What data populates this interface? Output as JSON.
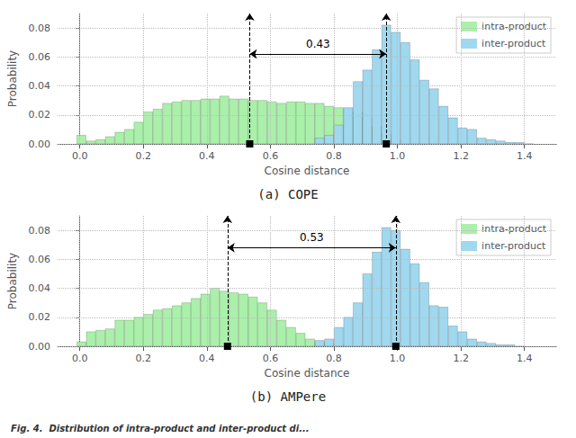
{
  "chart_data": [
    {
      "type": "histogram",
      "title": "(a) COPE",
      "xlabel": "Cosine distance",
      "ylabel": "Probability",
      "series": [
        {
          "name": "intra-product",
          "color": "#aaf0aa",
          "x": [
            0.005,
            0.035,
            0.065,
            0.095,
            0.125,
            0.155,
            0.185,
            0.215,
            0.245,
            0.275,
            0.305,
            0.335,
            0.365,
            0.395,
            0.425,
            0.455,
            0.485,
            0.515,
            0.545,
            0.575,
            0.605,
            0.635,
            0.665,
            0.695,
            0.725,
            0.755,
            0.785,
            0.815,
            0.845,
            0.875,
            0.905,
            0.935,
            0.965,
            0.995
          ],
          "values": [
            0.006,
            0.002,
            0.003,
            0.005,
            0.008,
            0.01,
            0.015,
            0.022,
            0.024,
            0.028,
            0.029,
            0.03,
            0.03,
            0.031,
            0.031,
            0.033,
            0.031,
            0.031,
            0.03,
            0.03,
            0.029,
            0.028,
            0.029,
            0.029,
            0.028,
            0.028,
            0.026,
            0.025,
            0.024,
            0.022,
            0.018,
            0.012,
            0.007,
            0.003
          ]
        },
        {
          "name": "inter-product",
          "color": "#a0d8ef",
          "x": [
            0.755,
            0.785,
            0.815,
            0.845,
            0.875,
            0.905,
            0.935,
            0.965,
            0.995,
            1.025,
            1.055,
            1.085,
            1.115,
            1.145,
            1.175,
            1.205,
            1.235,
            1.265,
            1.295,
            1.325,
            1.355,
            1.385,
            1.415
          ],
          "values": [
            0.004,
            0.006,
            0.013,
            0.025,
            0.043,
            0.051,
            0.065,
            0.082,
            0.077,
            0.07,
            0.058,
            0.044,
            0.038,
            0.026,
            0.018,
            0.011,
            0.01,
            0.004,
            0.003,
            0.002,
            0.001,
            0.001,
            0.0
          ]
        }
      ],
      "xlim": [
        -0.07,
        1.5
      ],
      "xticks": [
        {
          "value": 0,
          "label": "0.0"
        },
        0.2,
        0.4,
        0.6,
        0.8,
        {
          "value": 1,
          "label": "1.0"
        },
        1.2,
        1.4
      ],
      "ylim": [
        0.0,
        0.09
      ],
      "yticks": [
        {
          "value": 0,
          "label": "0.00"
        },
        0.02,
        0.04,
        0.06,
        0.08
      ],
      "grid": true,
      "legend": "upper right",
      "vlines": [
        0.535,
        0.965
      ],
      "annotations": [
        {
          "text": "0.43",
          "x": [
            0.535,
            0.965
          ],
          "y": 0.062
        }
      ]
    },
    {
      "type": "histogram",
      "title": "(b) AMPere",
      "xlabel": "Cosine distance",
      "ylabel": "Probability",
      "series": [
        {
          "name": "intra-product",
          "color": "#aaf0aa",
          "x": [
            0.005,
            0.035,
            0.065,
            0.095,
            0.125,
            0.155,
            0.185,
            0.215,
            0.245,
            0.275,
            0.305,
            0.335,
            0.365,
            0.395,
            0.425,
            0.455,
            0.485,
            0.515,
            0.545,
            0.575,
            0.605,
            0.635,
            0.665,
            0.695,
            0.725,
            0.755,
            0.785,
            0.815
          ],
          "values": [
            0.003,
            0.01,
            0.011,
            0.012,
            0.018,
            0.018,
            0.02,
            0.022,
            0.025,
            0.026,
            0.028,
            0.03,
            0.033,
            0.036,
            0.04,
            0.038,
            0.037,
            0.036,
            0.034,
            0.03,
            0.025,
            0.018,
            0.013,
            0.009,
            0.005,
            0.003,
            0.002,
            0.001
          ]
        },
        {
          "name": "inter-product",
          "color": "#a0d8ef",
          "x": [
            0.755,
            0.785,
            0.815,
            0.845,
            0.875,
            0.905,
            0.935,
            0.965,
            0.995,
            1.025,
            1.055,
            1.085,
            1.115,
            1.145,
            1.175,
            1.205,
            1.235,
            1.265,
            1.295,
            1.325,
            1.355,
            1.385
          ],
          "values": [
            0.004,
            0.005,
            0.013,
            0.02,
            0.03,
            0.05,
            0.065,
            0.082,
            0.08,
            0.067,
            0.057,
            0.044,
            0.028,
            0.027,
            0.014,
            0.01,
            0.005,
            0.003,
            0.002,
            0.001,
            0.001,
            0.0
          ]
        }
      ],
      "xlim": [
        -0.07,
        1.5
      ],
      "xticks": [
        {
          "value": 0,
          "label": "0.0"
        },
        0.2,
        0.4,
        0.6,
        0.8,
        {
          "value": 1,
          "label": "1.0"
        },
        1.2,
        1.4
      ],
      "ylim": [
        0.0,
        0.09
      ],
      "yticks": [
        {
          "value": 0,
          "label": "0.00"
        },
        0.02,
        0.04,
        0.06,
        0.08
      ],
      "grid": true,
      "legend": "upper right",
      "vlines": [
        0.465,
        0.995
      ],
      "annotations": [
        {
          "text": "0.53",
          "x": [
            0.465,
            0.995
          ],
          "y": 0.068
        }
      ]
    }
  ],
  "caption": "Fig. 4.  Distribution of intra-product and inter-product di..."
}
